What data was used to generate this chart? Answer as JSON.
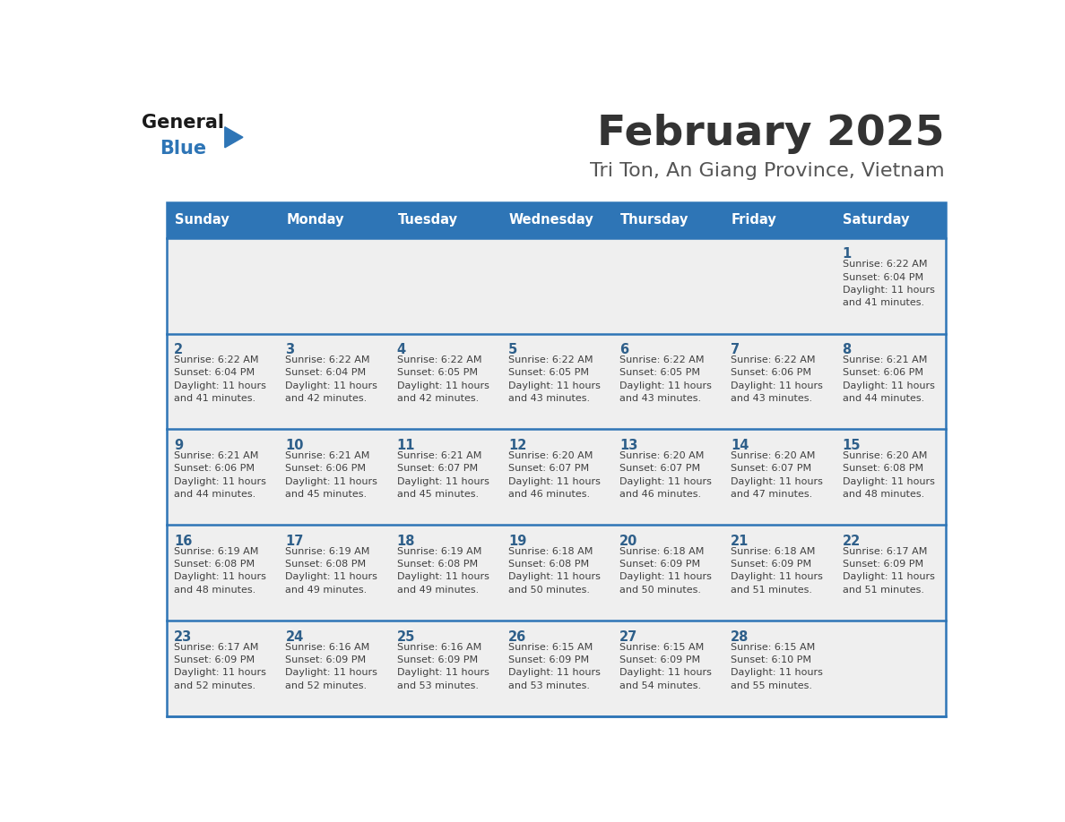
{
  "title": "February 2025",
  "subtitle": "Tri Ton, An Giang Province, Vietnam",
  "days_of_week": [
    "Sunday",
    "Monday",
    "Tuesday",
    "Wednesday",
    "Thursday",
    "Friday",
    "Saturday"
  ],
  "header_bg": "#2E75B6",
  "header_text_color": "#FFFFFF",
  "row_bg_light": "#EFEFEF",
  "grid_line_color": "#2E75B6",
  "day_number_color": "#2E5F8A",
  "cell_text_color": "#404040",
  "title_color": "#333333",
  "subtitle_color": "#555555",
  "logo_general_color": "#1A1A1A",
  "logo_blue_color": "#2E75B6",
  "calendar": [
    [
      null,
      null,
      null,
      null,
      null,
      null,
      {
        "day": 1,
        "sunrise": "6:22 AM",
        "sunset": "6:04 PM",
        "daylight": "11 hours and 41 minutes."
      }
    ],
    [
      {
        "day": 2,
        "sunrise": "6:22 AM",
        "sunset": "6:04 PM",
        "daylight": "11 hours and 41 minutes."
      },
      {
        "day": 3,
        "sunrise": "6:22 AM",
        "sunset": "6:04 PM",
        "daylight": "11 hours and 42 minutes."
      },
      {
        "day": 4,
        "sunrise": "6:22 AM",
        "sunset": "6:05 PM",
        "daylight": "11 hours and 42 minutes."
      },
      {
        "day": 5,
        "sunrise": "6:22 AM",
        "sunset": "6:05 PM",
        "daylight": "11 hours and 43 minutes."
      },
      {
        "day": 6,
        "sunrise": "6:22 AM",
        "sunset": "6:05 PM",
        "daylight": "11 hours and 43 minutes."
      },
      {
        "day": 7,
        "sunrise": "6:22 AM",
        "sunset": "6:06 PM",
        "daylight": "11 hours and 43 minutes."
      },
      {
        "day": 8,
        "sunrise": "6:21 AM",
        "sunset": "6:06 PM",
        "daylight": "11 hours and 44 minutes."
      }
    ],
    [
      {
        "day": 9,
        "sunrise": "6:21 AM",
        "sunset": "6:06 PM",
        "daylight": "11 hours and 44 minutes."
      },
      {
        "day": 10,
        "sunrise": "6:21 AM",
        "sunset": "6:06 PM",
        "daylight": "11 hours and 45 minutes."
      },
      {
        "day": 11,
        "sunrise": "6:21 AM",
        "sunset": "6:07 PM",
        "daylight": "11 hours and 45 minutes."
      },
      {
        "day": 12,
        "sunrise": "6:20 AM",
        "sunset": "6:07 PM",
        "daylight": "11 hours and 46 minutes."
      },
      {
        "day": 13,
        "sunrise": "6:20 AM",
        "sunset": "6:07 PM",
        "daylight": "11 hours and 46 minutes."
      },
      {
        "day": 14,
        "sunrise": "6:20 AM",
        "sunset": "6:07 PM",
        "daylight": "11 hours and 47 minutes."
      },
      {
        "day": 15,
        "sunrise": "6:20 AM",
        "sunset": "6:08 PM",
        "daylight": "11 hours and 48 minutes."
      }
    ],
    [
      {
        "day": 16,
        "sunrise": "6:19 AM",
        "sunset": "6:08 PM",
        "daylight": "11 hours and 48 minutes."
      },
      {
        "day": 17,
        "sunrise": "6:19 AM",
        "sunset": "6:08 PM",
        "daylight": "11 hours and 49 minutes."
      },
      {
        "day": 18,
        "sunrise": "6:19 AM",
        "sunset": "6:08 PM",
        "daylight": "11 hours and 49 minutes."
      },
      {
        "day": 19,
        "sunrise": "6:18 AM",
        "sunset": "6:08 PM",
        "daylight": "11 hours and 50 minutes."
      },
      {
        "day": 20,
        "sunrise": "6:18 AM",
        "sunset": "6:09 PM",
        "daylight": "11 hours and 50 minutes."
      },
      {
        "day": 21,
        "sunrise": "6:18 AM",
        "sunset": "6:09 PM",
        "daylight": "11 hours and 51 minutes."
      },
      {
        "day": 22,
        "sunrise": "6:17 AM",
        "sunset": "6:09 PM",
        "daylight": "11 hours and 51 minutes."
      }
    ],
    [
      {
        "day": 23,
        "sunrise": "6:17 AM",
        "sunset": "6:09 PM",
        "daylight": "11 hours and 52 minutes."
      },
      {
        "day": 24,
        "sunrise": "6:16 AM",
        "sunset": "6:09 PM",
        "daylight": "11 hours and 52 minutes."
      },
      {
        "day": 25,
        "sunrise": "6:16 AM",
        "sunset": "6:09 PM",
        "daylight": "11 hours and 53 minutes."
      },
      {
        "day": 26,
        "sunrise": "6:15 AM",
        "sunset": "6:09 PM",
        "daylight": "11 hours and 53 minutes."
      },
      {
        "day": 27,
        "sunrise": "6:15 AM",
        "sunset": "6:09 PM",
        "daylight": "11 hours and 54 minutes."
      },
      {
        "day": 28,
        "sunrise": "6:15 AM",
        "sunset": "6:10 PM",
        "daylight": "11 hours and 55 minutes."
      },
      null
    ]
  ]
}
